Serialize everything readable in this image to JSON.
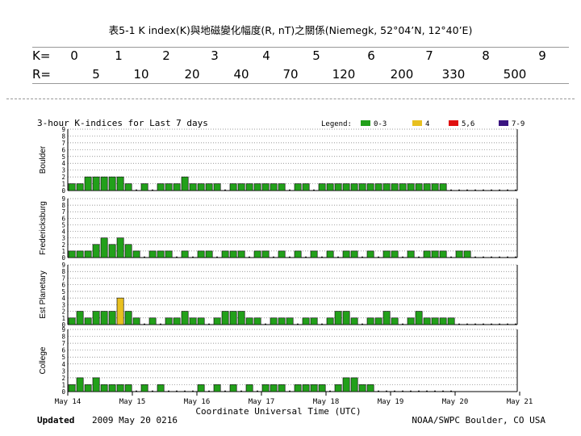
{
  "caption": "表5-1 K index(K)與地磁變化幅度(R, nT)之關係(Niemegk, 52°04’N, 12°40’E)",
  "k_table": {
    "k_label": "K=",
    "r_label": "R=",
    "k_values": [
      "0",
      "1",
      "2",
      "3",
      "4",
      "5",
      "6",
      "7",
      "8",
      "9"
    ],
    "r_values": [
      "5",
      "10",
      "20",
      "40",
      "70",
      "120",
      "200",
      "330",
      "500"
    ]
  },
  "chart_data": {
    "type": "bar",
    "title": "3-hour K-indices for Last 7 days",
    "legend_title": "Legend:",
    "legend": [
      {
        "label": "0-3",
        "color": "#22a01a"
      },
      {
        "label": "4",
        "color": "#e8c020"
      },
      {
        "label": "5,6",
        "color": "#e01010"
      },
      {
        "label": "7-9",
        "color": "#3a1480"
      }
    ],
    "ylim": [
      0,
      9
    ],
    "yticks": [
      "0",
      "1",
      "2",
      "3",
      "4",
      "5",
      "6",
      "7",
      "8",
      "9"
    ],
    "x_ticks": [
      "May 14",
      "May 15",
      "May 16",
      "May 17",
      "May 18",
      "May 19",
      "May 20",
      "May 21"
    ],
    "xlabel": "Coordinate Universal Time (UTC)",
    "grid": true,
    "series": [
      {
        "name": "Boulder",
        "values": [
          1,
          1,
          2,
          2,
          2,
          2,
          2,
          1,
          0,
          1,
          0,
          1,
          1,
          1,
          2,
          1,
          1,
          1,
          1,
          0,
          1,
          1,
          1,
          1,
          1,
          1,
          1,
          0,
          1,
          1,
          0,
          1,
          1,
          1,
          1,
          1,
          1,
          1,
          1,
          1,
          1,
          1,
          1,
          1,
          1,
          1,
          1,
          0,
          0,
          0,
          0,
          0,
          0,
          0,
          0,
          0
        ]
      },
      {
        "name": "Fredericksburg",
        "values": [
          1,
          1,
          1,
          2,
          3,
          2,
          3,
          2,
          1,
          0,
          1,
          1,
          1,
          0,
          1,
          0,
          1,
          1,
          0,
          1,
          1,
          1,
          0,
          1,
          1,
          0,
          1,
          0,
          1,
          0,
          1,
          0,
          1,
          0,
          1,
          1,
          0,
          1,
          0,
          1,
          1,
          0,
          1,
          0,
          1,
          1,
          1,
          0,
          1,
          1,
          0,
          0,
          0,
          0,
          0,
          0
        ]
      },
      {
        "name": "Est Planetary",
        "values": [
          1,
          2,
          1,
          2,
          2,
          2,
          4,
          2,
          1,
          0,
          1,
          0,
          1,
          1,
          2,
          1,
          1,
          0,
          1,
          2,
          2,
          2,
          1,
          1,
          0,
          1,
          1,
          1,
          0,
          1,
          1,
          0,
          1,
          2,
          2,
          1,
          0,
          1,
          1,
          2,
          1,
          0,
          1,
          2,
          1,
          1,
          1,
          1,
          0,
          0,
          0,
          0,
          0,
          0,
          0,
          0
        ]
      },
      {
        "name": "College",
        "values": [
          1,
          2,
          1,
          2,
          1,
          1,
          1,
          1,
          0,
          1,
          0,
          1,
          0,
          0,
          0,
          0,
          1,
          0,
          1,
          0,
          1,
          0,
          1,
          0,
          1,
          1,
          1,
          0,
          1,
          1,
          1,
          1,
          0,
          1,
          2,
          2,
          1,
          1,
          0,
          0,
          0,
          0,
          0,
          0,
          0,
          0,
          0,
          0
        ]
      }
    ]
  },
  "footer": {
    "updated": "Updated",
    "date": "2009 May 20 0216",
    "source": "NOAA/SWPC Boulder, CO USA"
  }
}
